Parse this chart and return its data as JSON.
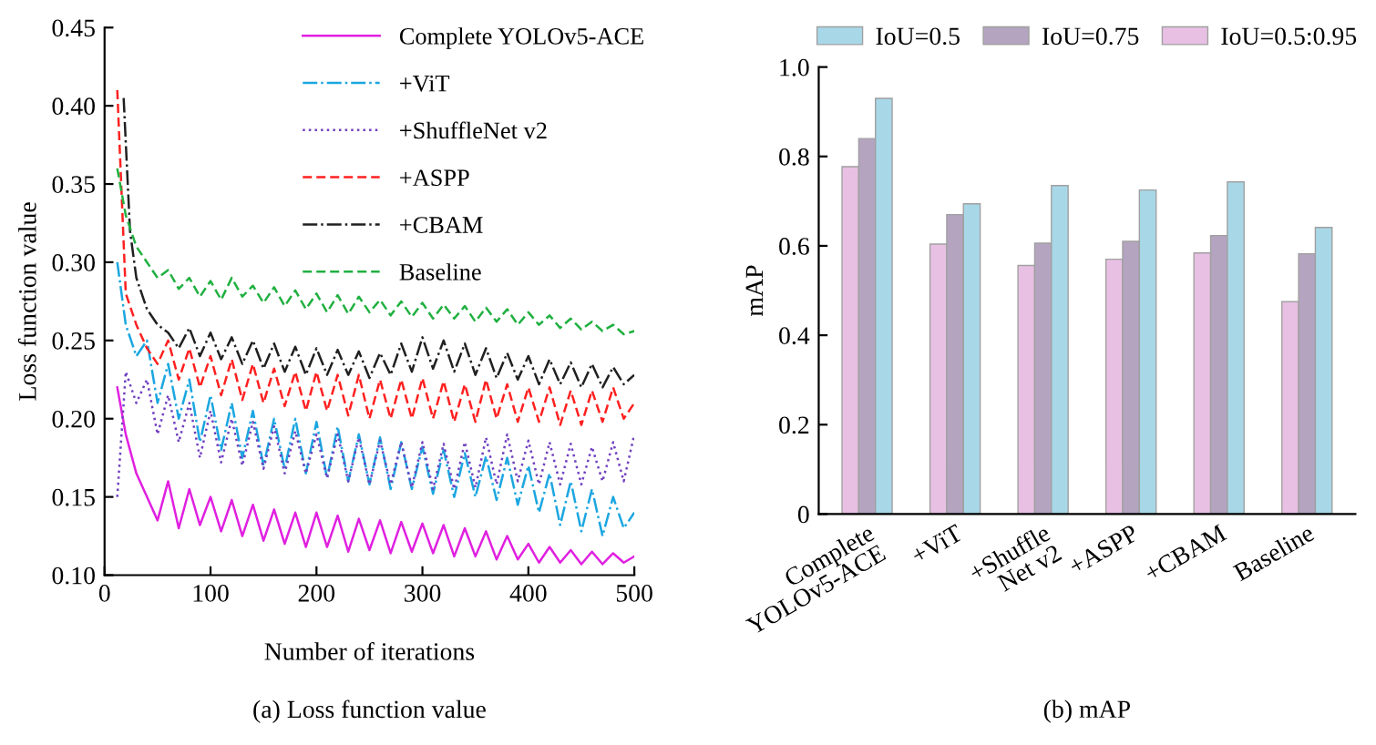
{
  "chart_data": [
    {
      "type": "line",
      "xlabel": "Number of iterations",
      "ylabel": "Loss function value",
      "annotations": [
        "(a) Loss function value"
      ],
      "x": [
        12,
        20,
        30,
        40,
        50,
        60,
        70,
        80,
        90,
        100,
        110,
        120,
        130,
        140,
        150,
        160,
        170,
        180,
        190,
        200,
        210,
        220,
        230,
        240,
        250,
        260,
        270,
        280,
        290,
        300,
        310,
        320,
        330,
        340,
        350,
        360,
        370,
        380,
        390,
        400,
        410,
        420,
        430,
        440,
        450,
        460,
        470,
        480,
        490,
        500
      ],
      "xlim": [
        0,
        500
      ],
      "xticks": [
        0,
        100,
        200,
        300,
        400,
        500
      ],
      "ylim": [
        0.1,
        0.45
      ],
      "yticks": [
        {
          "value": 0.1,
          "label": "0.10"
        },
        {
          "value": 0.15,
          "label": "0.15"
        },
        {
          "value": 0.2,
          "label": "0.20"
        },
        {
          "value": 0.25,
          "label": "0.25"
        },
        {
          "value": 0.3,
          "label": "0.30"
        },
        {
          "value": 0.35,
          "label": "0.35"
        },
        {
          "value": 0.4,
          "label": "0.40"
        },
        {
          "value": 0.45,
          "label": "0.45"
        }
      ],
      "grid": false,
      "legend": "top right",
      "marker": "none",
      "series": [
        {
          "name": "Complete YOLOv5-ACE",
          "color": "#e020e0",
          "line_style": "solid",
          "values": [
            0.22,
            0.19,
            0.165,
            0.15,
            0.135,
            0.16,
            0.13,
            0.155,
            0.132,
            0.15,
            0.128,
            0.148,
            0.125,
            0.145,
            0.122,
            0.142,
            0.12,
            0.14,
            0.118,
            0.14,
            0.118,
            0.138,
            0.115,
            0.136,
            0.116,
            0.135,
            0.114,
            0.134,
            0.115,
            0.133,
            0.114,
            0.132,
            0.112,
            0.13,
            0.112,
            0.128,
            0.11,
            0.125,
            0.11,
            0.12,
            0.108,
            0.118,
            0.108,
            0.116,
            0.107,
            0.115,
            0.107,
            0.114,
            0.108,
            0.112
          ]
        },
        {
          "name": "+ViT",
          "color": "#1ba6e0",
          "line_style": "dashdot",
          "values": [
            0.3,
            0.26,
            0.24,
            0.25,
            0.21,
            0.235,
            0.2,
            0.225,
            0.185,
            0.215,
            0.18,
            0.21,
            0.175,
            0.205,
            0.17,
            0.2,
            0.168,
            0.2,
            0.165,
            0.198,
            0.162,
            0.195,
            0.16,
            0.19,
            0.158,
            0.188,
            0.155,
            0.185,
            0.155,
            0.182,
            0.152,
            0.18,
            0.15,
            0.178,
            0.15,
            0.176,
            0.148,
            0.175,
            0.145,
            0.17,
            0.14,
            0.165,
            0.132,
            0.16,
            0.128,
            0.155,
            0.125,
            0.15,
            0.13,
            0.14
          ]
        },
        {
          "name": "+ShuffleNet v2",
          "color": "#7040c0",
          "line_style": "dotted",
          "values": [
            0.15,
            0.23,
            0.21,
            0.225,
            0.19,
            0.215,
            0.185,
            0.21,
            0.175,
            0.205,
            0.172,
            0.2,
            0.17,
            0.198,
            0.168,
            0.195,
            0.165,
            0.192,
            0.165,
            0.19,
            0.162,
            0.19,
            0.16,
            0.188,
            0.158,
            0.186,
            0.158,
            0.185,
            0.156,
            0.185,
            0.155,
            0.184,
            0.155,
            0.185,
            0.156,
            0.188,
            0.158,
            0.19,
            0.16,
            0.186,
            0.158,
            0.185,
            0.158,
            0.184,
            0.158,
            0.182,
            0.16,
            0.185,
            0.16,
            0.19
          ]
        },
        {
          "name": "+ASPP",
          "color": "#ff2020",
          "line_style": "dashed",
          "values": [
            0.41,
            0.28,
            0.26,
            0.245,
            0.235,
            0.25,
            0.225,
            0.245,
            0.22,
            0.24,
            0.215,
            0.238,
            0.212,
            0.235,
            0.21,
            0.232,
            0.208,
            0.23,
            0.205,
            0.23,
            0.205,
            0.228,
            0.202,
            0.228,
            0.2,
            0.225,
            0.2,
            0.225,
            0.2,
            0.226,
            0.2,
            0.224,
            0.198,
            0.222,
            0.198,
            0.225,
            0.2,
            0.222,
            0.198,
            0.22,
            0.198,
            0.22,
            0.196,
            0.218,
            0.196,
            0.218,
            0.198,
            0.22,
            0.2,
            0.21
          ]
        },
        {
          "name": "+CBAM",
          "color": "#202020",
          "line_style": "dashdot",
          "x": [
            18,
            24,
            30,
            40,
            50,
            60,
            70,
            80,
            90,
            100,
            110,
            120,
            130,
            140,
            150,
            160,
            170,
            180,
            190,
            200,
            210,
            220,
            230,
            240,
            250,
            260,
            270,
            280,
            290,
            300,
            310,
            320,
            330,
            340,
            350,
            360,
            370,
            380,
            390,
            400,
            410,
            420,
            430,
            440,
            450,
            460,
            470,
            480,
            490,
            500
          ],
          "values": [
            0.405,
            0.32,
            0.29,
            0.27,
            0.26,
            0.255,
            0.245,
            0.258,
            0.24,
            0.255,
            0.238,
            0.252,
            0.235,
            0.25,
            0.232,
            0.248,
            0.23,
            0.246,
            0.228,
            0.245,
            0.228,
            0.244,
            0.228,
            0.243,
            0.226,
            0.242,
            0.228,
            0.248,
            0.23,
            0.252,
            0.232,
            0.25,
            0.23,
            0.248,
            0.228,
            0.245,
            0.226,
            0.242,
            0.225,
            0.24,
            0.222,
            0.238,
            0.222,
            0.236,
            0.22,
            0.235,
            0.22,
            0.233,
            0.222,
            0.228
          ]
        },
        {
          "name": "Baseline",
          "color": "#20b040",
          "line_style": "dashed",
          "values": [
            0.36,
            0.33,
            0.31,
            0.3,
            0.29,
            0.295,
            0.283,
            0.29,
            0.278,
            0.288,
            0.276,
            0.29,
            0.278,
            0.285,
            0.274,
            0.284,
            0.272,
            0.282,
            0.27,
            0.28,
            0.268,
            0.279,
            0.267,
            0.278,
            0.268,
            0.276,
            0.266,
            0.275,
            0.265,
            0.274,
            0.264,
            0.273,
            0.264,
            0.272,
            0.262,
            0.271,
            0.262,
            0.27,
            0.26,
            0.268,
            0.26,
            0.266,
            0.258,
            0.264,
            0.257,
            0.262,
            0.256,
            0.26,
            0.254,
            0.256
          ]
        }
      ]
    },
    {
      "type": "bar",
      "ylabel": "mAP",
      "annotations": [
        "(b) mAP"
      ],
      "categories": [
        "Complete\nYOLOv5-ACE",
        "+ViT",
        "+Shuffle\nNet v2",
        "+ASPP",
        "+CBAM",
        "Baseline"
      ],
      "ylim": [
        0,
        1.0
      ],
      "yticks": [
        0,
        0.2,
        0.4,
        0.6,
        0.8,
        {
          "value": 1.0,
          "label": "1.0"
        }
      ],
      "grid": false,
      "legend": "top",
      "series": [
        {
          "name": "IoU=0.5:0.95",
          "color": "#e8c0e4",
          "values": [
            0.777,
            0.604,
            0.556,
            0.57,
            0.584,
            0.475
          ]
        },
        {
          "name": "IoU=0.75",
          "color": "#b4a4c0",
          "values": [
            0.84,
            0.67,
            0.606,
            0.61,
            0.623,
            0.582
          ]
        },
        {
          "name": "IoU=0.5",
          "color": "#a8d8e8",
          "values": [
            0.93,
            0.694,
            0.735,
            0.725,
            0.743,
            0.641
          ]
        }
      ]
    }
  ]
}
